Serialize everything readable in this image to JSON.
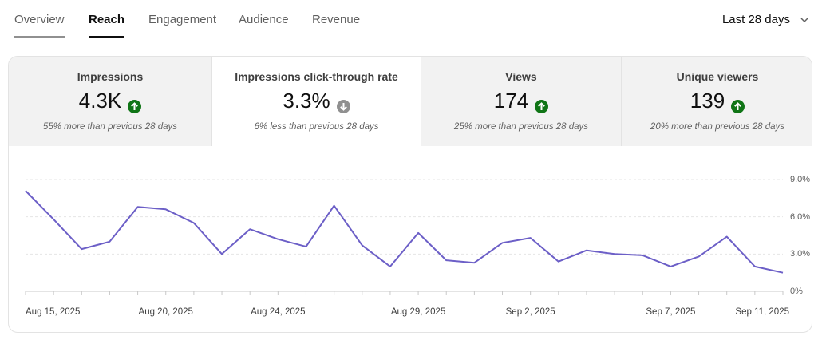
{
  "tabs": {
    "overview": "Overview",
    "reach": "Reach",
    "engagement": "Engagement",
    "audience": "Audience",
    "revenue": "Revenue"
  },
  "date_range": {
    "label": "Last 28 days",
    "icon": "chevron-down-icon"
  },
  "metrics": [
    {
      "label": "Impressions",
      "value": "4.3K",
      "trend": "up",
      "desc": "55% more than previous 28 days"
    },
    {
      "label": "Impressions click-through rate",
      "value": "3.3%",
      "trend": "down",
      "desc": "6% less than previous 28 days",
      "selected": true
    },
    {
      "label": "Views",
      "value": "174",
      "trend": "up",
      "desc": "25% more than previous 28 days"
    },
    {
      "label": "Unique viewers",
      "value": "139",
      "trend": "up",
      "desc": "20% more than previous 28 days"
    }
  ],
  "colors": {
    "line": "#6c5fc7",
    "trend_up": "#107516",
    "trend_down": "#909090",
    "grid": "#e5e5e5"
  },
  "chart_data": {
    "type": "line",
    "series": [
      {
        "values": [
          8.1,
          5.8,
          3.4,
          4.0,
          6.8,
          6.6,
          5.5,
          3.0,
          5.0,
          4.2,
          3.6,
          6.9,
          3.7,
          2.0,
          4.7,
          2.5,
          2.3,
          3.9,
          4.3,
          2.4,
          3.3,
          3.0,
          2.9,
          2.0,
          2.8,
          4.4,
          2.0,
          1.5
        ]
      }
    ],
    "x_tick_labels": [
      "Aug 15, 2025",
      "Aug 20, 2025",
      "Aug 24, 2025",
      "Aug 29, 2025",
      "Sep 2, 2025",
      "Sep 7, 2025",
      "Sep 11, 2025"
    ],
    "x_tick_indices": [
      0,
      5,
      9,
      14,
      18,
      23,
      27
    ],
    "y_tick_labels": [
      "9.0%",
      "6.0%",
      "3.0%",
      "0%"
    ],
    "y_tick_values": [
      9,
      6,
      3,
      0
    ],
    "ylim": [
      0,
      9
    ],
    "grid": true,
    "y_axis_side": "right"
  }
}
